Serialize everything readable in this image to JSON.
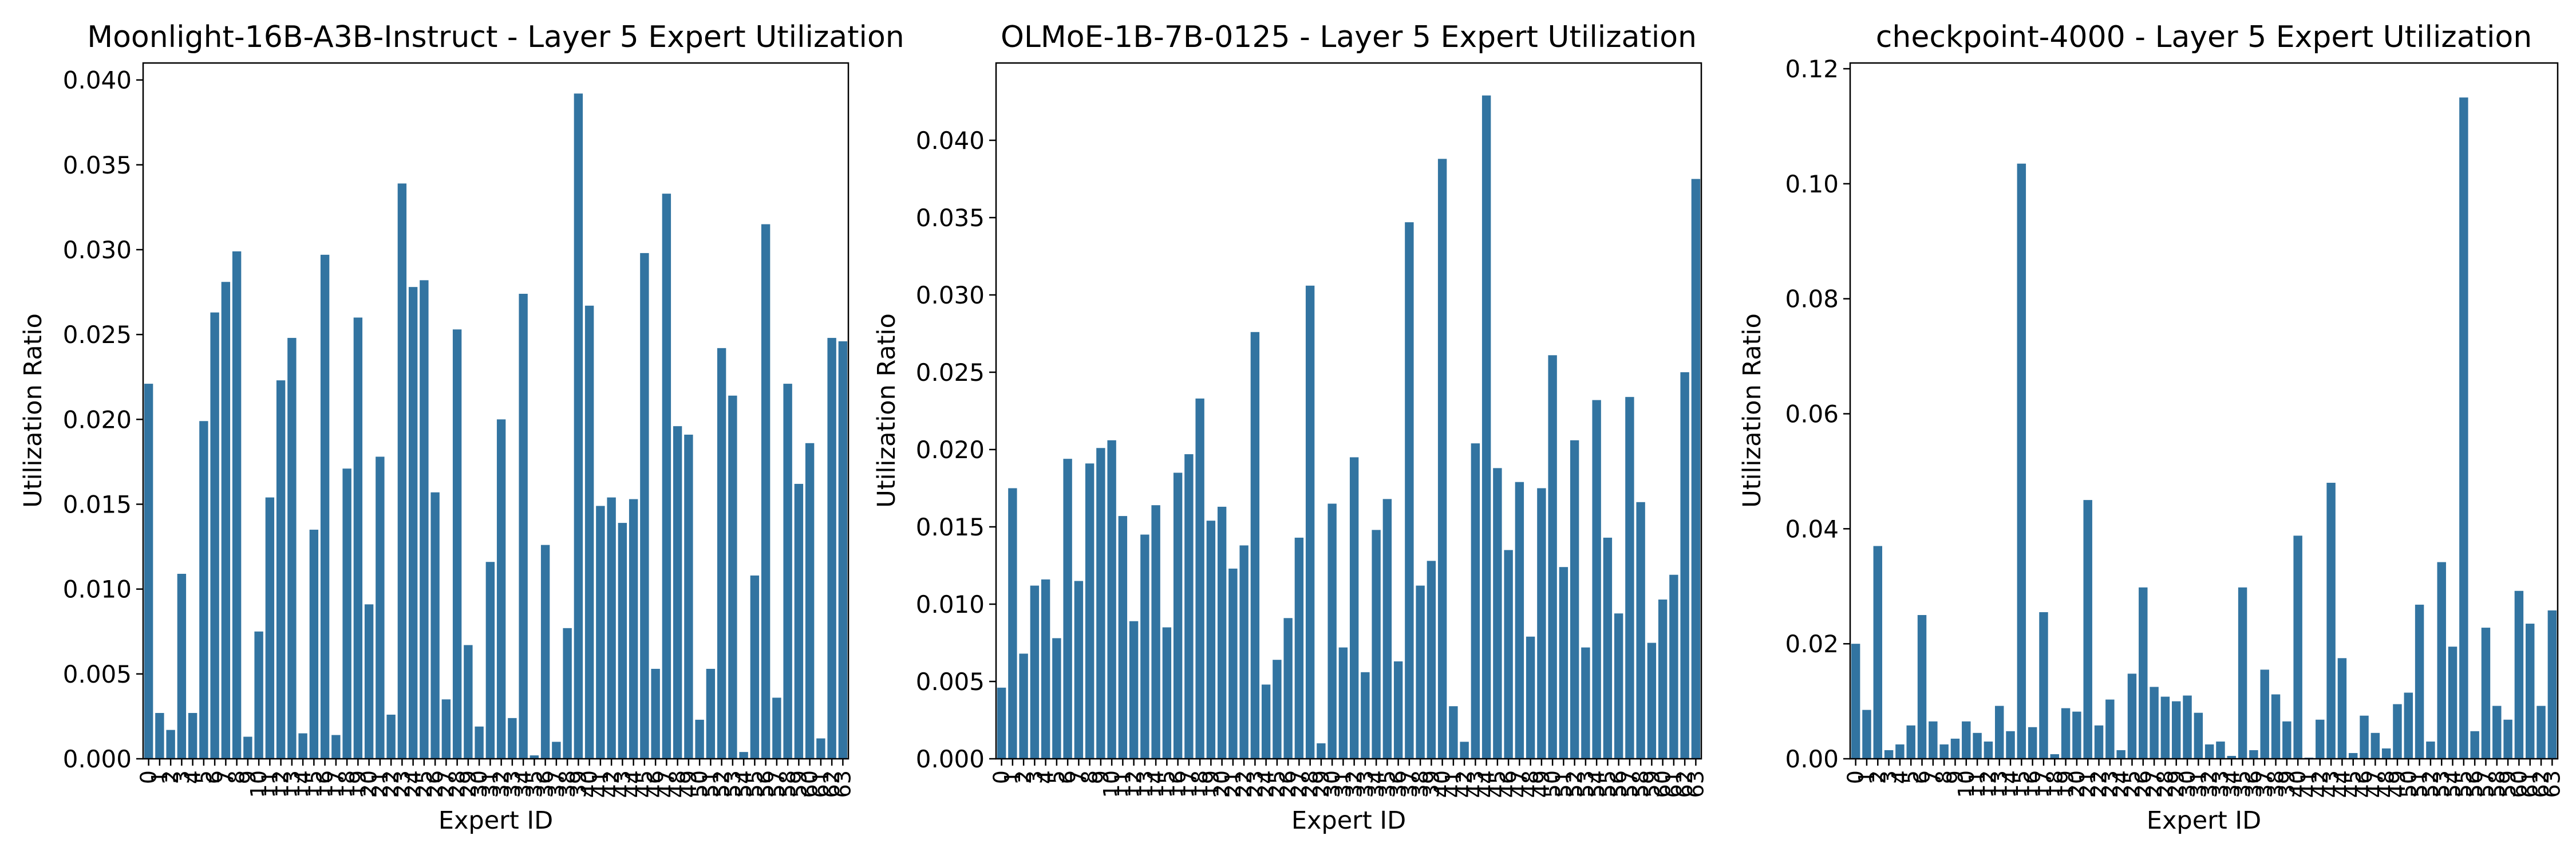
{
  "chart_data": [
    {
      "type": "bar",
      "title": "Moonlight-16B-A3B-Instruct - Layer 5 Expert Utilization",
      "xlabel": "Expert ID",
      "ylabel": "Utilization Ratio",
      "ylim": [
        0,
        0.041
      ],
      "yticks": [
        "0.000",
        "0.005",
        "0.010",
        "0.015",
        "0.020",
        "0.025",
        "0.030",
        "0.035",
        "0.040"
      ],
      "bar_color": "#3274a1",
      "categories": [
        "0",
        "1",
        "2",
        "3",
        "4",
        "5",
        "6",
        "7",
        "8",
        "9",
        "10",
        "11",
        "12",
        "13",
        "14",
        "15",
        "16",
        "17",
        "18",
        "19",
        "20",
        "21",
        "22",
        "23",
        "24",
        "25",
        "26",
        "27",
        "28",
        "29",
        "30",
        "31",
        "32",
        "33",
        "34",
        "35",
        "36",
        "37",
        "38",
        "39",
        "40",
        "41",
        "42",
        "43",
        "44",
        "45",
        "46",
        "47",
        "48",
        "49",
        "50",
        "51",
        "52",
        "53",
        "54",
        "55",
        "56",
        "57",
        "58",
        "59",
        "60",
        "61",
        "62",
        "63"
      ],
      "values": [
        0.0221,
        0.0027,
        0.0017,
        0.0109,
        0.0027,
        0.0199,
        0.0263,
        0.0281,
        0.0299,
        0.0013,
        0.0075,
        0.0154,
        0.0223,
        0.0248,
        0.0015,
        0.0135,
        0.0297,
        0.0014,
        0.0171,
        0.026,
        0.0091,
        0.0178,
        0.0026,
        0.0339,
        0.0278,
        0.0282,
        0.0157,
        0.0035,
        0.0253,
        0.0067,
        0.0019,
        0.0116,
        0.02,
        0.0024,
        0.0274,
        0.0002,
        0.0126,
        0.001,
        0.0077,
        0.0392,
        0.0267,
        0.0149,
        0.0154,
        0.0139,
        0.0153,
        0.0298,
        0.0053,
        0.0333,
        0.0196,
        0.0191,
        0.0023,
        0.0053,
        0.0242,
        0.0214,
        0.0004,
        0.0108,
        0.0315,
        0.0036,
        0.0221,
        0.0162,
        0.0186,
        0.0012,
        0.0248,
        0.0246
      ]
    },
    {
      "type": "bar",
      "title": "OLMoE-1B-7B-0125 - Layer 5 Expert Utilization",
      "xlabel": "Expert ID",
      "ylabel": "Utilization Ratio",
      "ylim": [
        0,
        0.045
      ],
      "yticks": [
        "0.000",
        "0.005",
        "0.010",
        "0.015",
        "0.020",
        "0.025",
        "0.030",
        "0.035",
        "0.040"
      ],
      "bar_color": "#3274a1",
      "categories": [
        "0",
        "1",
        "2",
        "3",
        "4",
        "5",
        "6",
        "7",
        "8",
        "9",
        "10",
        "11",
        "12",
        "13",
        "14",
        "15",
        "16",
        "17",
        "18",
        "19",
        "20",
        "21",
        "22",
        "23",
        "24",
        "25",
        "26",
        "27",
        "28",
        "29",
        "30",
        "31",
        "32",
        "33",
        "34",
        "35",
        "36",
        "37",
        "38",
        "39",
        "40",
        "41",
        "42",
        "43",
        "44",
        "45",
        "46",
        "47",
        "48",
        "49",
        "50",
        "51",
        "52",
        "53",
        "54",
        "55",
        "56",
        "57",
        "58",
        "59",
        "60",
        "61",
        "62",
        "63"
      ],
      "values": [
        0.0046,
        0.0175,
        0.0068,
        0.0112,
        0.0116,
        0.0078,
        0.0194,
        0.0115,
        0.0191,
        0.0201,
        0.0206,
        0.0157,
        0.0089,
        0.0145,
        0.0164,
        0.0085,
        0.0185,
        0.0197,
        0.0233,
        0.0154,
        0.0163,
        0.0123,
        0.0138,
        0.0276,
        0.0048,
        0.0064,
        0.0091,
        0.0143,
        0.0306,
        0.001,
        0.0165,
        0.0072,
        0.0195,
        0.0056,
        0.0148,
        0.0168,
        0.0063,
        0.0347,
        0.0112,
        0.0128,
        0.0388,
        0.0034,
        0.0011,
        0.0204,
        0.0429,
        0.0188,
        0.0135,
        0.0179,
        0.0079,
        0.0175,
        0.0261,
        0.0124,
        0.0206,
        0.0072,
        0.0232,
        0.0143,
        0.0094,
        0.0234,
        0.0166,
        0.0075,
        0.0103,
        0.0119,
        0.025,
        0.0375
      ]
    },
    {
      "type": "bar",
      "title": "checkpoint-4000 - Layer 5 Expert Utilization",
      "xlabel": "Expert ID",
      "ylabel": "Utilization Ratio",
      "ylim": [
        0,
        0.121
      ],
      "yticks": [
        "0.00",
        "0.02",
        "0.04",
        "0.06",
        "0.08",
        "0.10",
        "0.12"
      ],
      "bar_color": "#3274a1",
      "categories": [
        "0",
        "1",
        "2",
        "3",
        "4",
        "5",
        "6",
        "7",
        "8",
        "9",
        "10",
        "11",
        "12",
        "13",
        "14",
        "15",
        "16",
        "17",
        "18",
        "19",
        "20",
        "21",
        "22",
        "23",
        "24",
        "25",
        "26",
        "27",
        "28",
        "29",
        "30",
        "31",
        "32",
        "33",
        "34",
        "35",
        "36",
        "37",
        "38",
        "39",
        "40",
        "41",
        "42",
        "43",
        "44",
        "45",
        "46",
        "47",
        "48",
        "49",
        "50",
        "51",
        "52",
        "53",
        "54",
        "55",
        "56",
        "57",
        "58",
        "59",
        "60",
        "61",
        "62",
        "63"
      ],
      "values": [
        0.02,
        0.0085,
        0.037,
        0.0015,
        0.0025,
        0.0058,
        0.025,
        0.0065,
        0.0025,
        0.0035,
        0.0065,
        0.0045,
        0.003,
        0.0092,
        0.0048,
        0.1035,
        0.0055,
        0.0255,
        0.0008,
        0.0088,
        0.0082,
        0.045,
        0.0058,
        0.0103,
        0.0015,
        0.0148,
        0.0298,
        0.0125,
        0.0108,
        0.01,
        0.011,
        0.008,
        0.0025,
        0.003,
        0.0005,
        0.0298,
        0.0015,
        0.0155,
        0.0112,
        0.0065,
        0.0388,
        0.0002,
        0.0068,
        0.048,
        0.0175,
        0.001,
        0.0075,
        0.0045,
        0.0018,
        0.0095,
        0.0115,
        0.0268,
        0.003,
        0.0342,
        0.0195,
        0.115,
        0.0048,
        0.0228,
        0.0092,
        0.0068,
        0.0292,
        0.0235,
        0.0092,
        0.0258
      ]
    }
  ]
}
